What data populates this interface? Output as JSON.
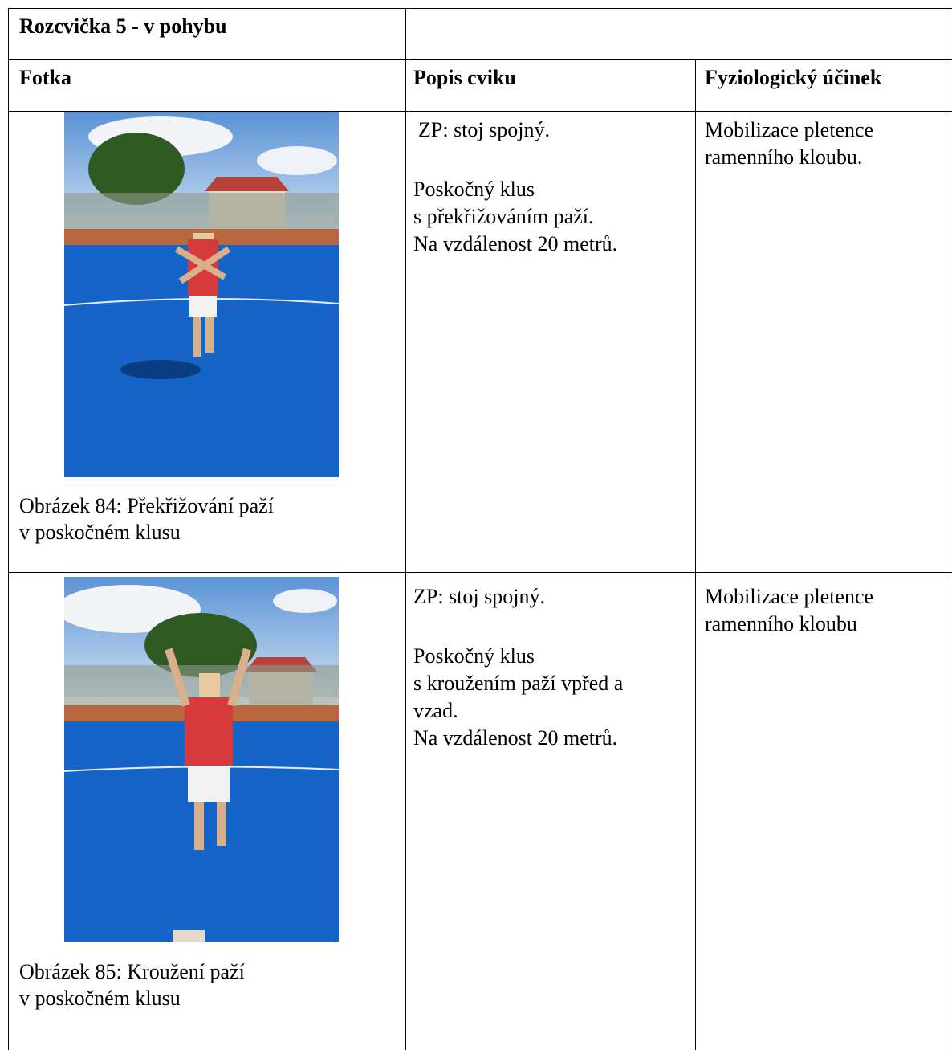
{
  "table": {
    "title": "Rozcvička 5 - v pohybu",
    "header": [
      "Fotka",
      "Popis cviku",
      "Fyziologický účinek"
    ],
    "rows": [
      {
        "caption": [
          "Obrázek 84: Překřižování paží",
          "v poskočném klusu"
        ],
        "description": [
          [
            "ZP: stoj spojný."
          ],
          [
            "Poskočný klus",
            "s překřižováním paží.",
            "Na vzdálenost 20 metrů."
          ]
        ],
        "effect": [
          "Mobilizace pletence",
          "ramenního kloubu."
        ]
      },
      {
        "caption": [
          "Obrázek 85: Kroužení paží",
          "v poskočném klusu"
        ],
        "description": [
          [
            "ZP: stoj spojný."
          ],
          [
            "Poskočný klus",
            "s kroužením paží vpřed a",
            "vzad.",
            "Na vzdálenost 20 metrů."
          ]
        ],
        "effect": [
          "Mobilizace pletence",
          "ramenního kloubu"
        ]
      }
    ]
  }
}
